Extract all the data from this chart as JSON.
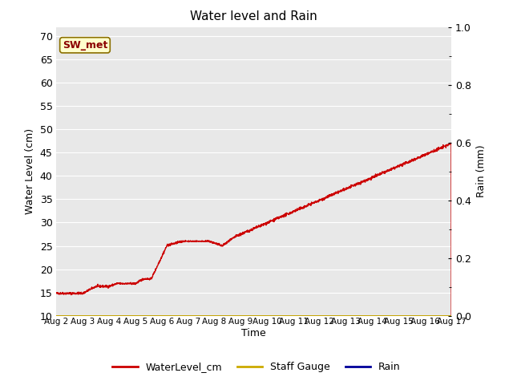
{
  "title": "Water level and Rain",
  "xlabel": "Time",
  "ylabel_left": "Water Level (cm)",
  "ylabel_right": "Rain (mm)",
  "annotation_text": "SW_met",
  "ylim_left": [
    10,
    72
  ],
  "ylim_right": [
    0.0,
    1.0
  ],
  "yticks_left": [
    10,
    15,
    20,
    25,
    30,
    35,
    40,
    45,
    50,
    55,
    60,
    65,
    70
  ],
  "yticks_right": [
    0.0,
    0.2,
    0.4,
    0.6,
    0.8,
    1.0
  ],
  "background_color": "#e8e8e8",
  "line_color_water": "#cc0000",
  "line_color_staff": "#ccaa00",
  "line_color_rain": "#000099",
  "legend_labels": [
    "WaterLevel_cm",
    "Staff Gauge",
    "Rain"
  ],
  "legend_colors": [
    "#cc0000",
    "#ccaa00",
    "#000099"
  ],
  "xtick_labels": [
    "Aug 2",
    "Aug 3",
    "Aug 4",
    "Aug 5",
    "Aug 6",
    "Aug 7",
    "Aug 8",
    "Aug 9",
    "Aug 10",
    "Aug 11",
    "Aug 12",
    "Aug 13",
    "Aug 14",
    "Aug 15",
    "Aug 16",
    "Aug 17"
  ]
}
